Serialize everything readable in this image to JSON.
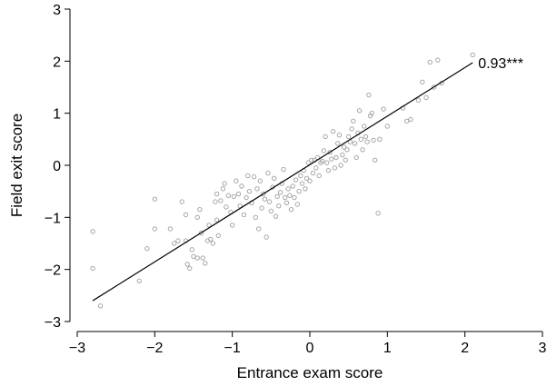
{
  "chart_data": {
    "type": "scatter",
    "title": "",
    "xlabel": "Entrance exam score",
    "ylabel": "Field exit score",
    "xlim": [
      -3,
      3
    ],
    "ylim": [
      -3,
      3
    ],
    "xticks": [
      -3,
      -2,
      -1,
      0,
      1,
      2,
      3
    ],
    "yticks": [
      -3,
      -2,
      -1,
      0,
      1,
      2,
      3
    ],
    "xtick_labels": [
      "−3",
      "−2",
      "−1",
      "0",
      "1",
      "2",
      "3"
    ],
    "ytick_labels": [
      "−3",
      "−2",
      "−1",
      "0",
      "1",
      "2",
      "3"
    ],
    "grid": false,
    "annotation": "0.93***",
    "fit_line": {
      "x": [
        -2.8,
        2.1
      ],
      "y": [
        -2.6,
        1.97
      ]
    },
    "points": [
      [
        -2.8,
        -1.27
      ],
      [
        -2.8,
        -1.98
      ],
      [
        -2.7,
        -2.7
      ],
      [
        -2.2,
        -2.22
      ],
      [
        -2.1,
        -1.6
      ],
      [
        -2.0,
        -1.22
      ],
      [
        -2.0,
        -0.65
      ],
      [
        -1.8,
        -1.22
      ],
      [
        -1.75,
        -1.5
      ],
      [
        -1.7,
        -1.45
      ],
      [
        -1.65,
        -0.7
      ],
      [
        -1.6,
        -0.95
      ],
      [
        -1.6,
        -1.45
      ],
      [
        -1.58,
        -1.9
      ],
      [
        -1.55,
        -1.98
      ],
      [
        -1.52,
        -1.62
      ],
      [
        -1.5,
        -1.75
      ],
      [
        -1.45,
        -1.78
      ],
      [
        -1.45,
        -1.0
      ],
      [
        -1.42,
        -0.85
      ],
      [
        -1.4,
        -1.3
      ],
      [
        -1.38,
        -1.78
      ],
      [
        -1.35,
        -1.88
      ],
      [
        -1.32,
        -1.45
      ],
      [
        -1.3,
        -1.15
      ],
      [
        -1.28,
        -1.42
      ],
      [
        -1.25,
        -1.5
      ],
      [
        -1.22,
        -0.7
      ],
      [
        -1.2,
        -1.05
      ],
      [
        -1.2,
        -0.55
      ],
      [
        -1.18,
        -1.35
      ],
      [
        -1.15,
        -0.68
      ],
      [
        -1.12,
        -0.45
      ],
      [
        -1.1,
        -0.35
      ],
      [
        -1.08,
        -0.8
      ],
      [
        -1.05,
        -0.58
      ],
      [
        -1.02,
        -0.9
      ],
      [
        -1.0,
        -1.15
      ],
      [
        -0.98,
        -0.6
      ],
      [
        -0.95,
        -0.3
      ],
      [
        -0.92,
        -0.55
      ],
      [
        -0.9,
        -0.78
      ],
      [
        -0.88,
        -0.4
      ],
      [
        -0.85,
        -0.95
      ],
      [
        -0.82,
        -0.62
      ],
      [
        -0.8,
        -0.2
      ],
      [
        -0.78,
        -0.5
      ],
      [
        -0.75,
        -0.72
      ],
      [
        -0.72,
        -0.22
      ],
      [
        -0.7,
        -1.0
      ],
      [
        -0.68,
        -0.45
      ],
      [
        -0.66,
        -1.22
      ],
      [
        -0.64,
        -0.3
      ],
      [
        -0.62,
        -0.82
      ],
      [
        -0.6,
        -0.55
      ],
      [
        -0.58,
        -0.65
      ],
      [
        -0.56,
        -1.38
      ],
      [
        -0.54,
        -0.15
      ],
      [
        -0.52,
        -0.7
      ],
      [
        -0.5,
        -0.88
      ],
      [
        -0.48,
        -0.42
      ],
      [
        -0.46,
        -0.25
      ],
      [
        -0.44,
        -0.98
      ],
      [
        -0.42,
        -0.6
      ],
      [
        -0.4,
        -0.78
      ],
      [
        -0.38,
        -0.52
      ],
      [
        -0.36,
        -0.35
      ],
      [
        -0.34,
        -0.08
      ],
      [
        -0.32,
        -0.62
      ],
      [
        -0.3,
        -0.72
      ],
      [
        -0.28,
        -0.45
      ],
      [
        -0.26,
        -0.58
      ],
      [
        -0.24,
        -0.85
      ],
      [
        -0.22,
        -0.4
      ],
      [
        -0.2,
        -0.62
      ],
      [
        -0.18,
        -0.28
      ],
      [
        -0.16,
        -0.75
      ],
      [
        -0.14,
        -0.5
      ],
      [
        -0.12,
        -0.2
      ],
      [
        -0.1,
        -0.35
      ],
      [
        -0.08,
        -0.1
      ],
      [
        -0.06,
        -0.45
      ],
      [
        -0.04,
        -0.25
      ],
      [
        -0.02,
        0.05
      ],
      [
        0.0,
        -0.3
      ],
      [
        0.02,
        0.1
      ],
      [
        0.04,
        -0.15
      ],
      [
        0.06,
        0.1
      ],
      [
        0.08,
        -0.05
      ],
      [
        0.1,
        0.15
      ],
      [
        0.12,
        -0.2
      ],
      [
        0.14,
        0.05
      ],
      [
        0.16,
        0.08
      ],
      [
        0.18,
        0.28
      ],
      [
        0.2,
        0.55
      ],
      [
        0.22,
        0.05
      ],
      [
        0.24,
        -0.1
      ],
      [
        0.26,
        0.25
      ],
      [
        0.28,
        0.12
      ],
      [
        0.3,
        0.65
      ],
      [
        0.32,
        -0.05
      ],
      [
        0.34,
        0.15
      ],
      [
        0.36,
        0.42
      ],
      [
        0.38,
        0.58
      ],
      [
        0.4,
        0.0
      ],
      [
        0.42,
        0.2
      ],
      [
        0.44,
        0.35
      ],
      [
        0.46,
        0.1
      ],
      [
        0.48,
        0.3
      ],
      [
        0.5,
        0.55
      ],
      [
        0.52,
        0.45
      ],
      [
        0.54,
        0.7
      ],
      [
        0.56,
        0.85
      ],
      [
        0.58,
        0.42
      ],
      [
        0.6,
        0.15
      ],
      [
        0.62,
        0.62
      ],
      [
        0.64,
        1.05
      ],
      [
        0.66,
        0.5
      ],
      [
        0.68,
        0.3
      ],
      [
        0.7,
        0.75
      ],
      [
        0.72,
        0.55
      ],
      [
        0.74,
        0.45
      ],
      [
        0.76,
        1.35
      ],
      [
        0.78,
        0.95
      ],
      [
        0.8,
        1.0
      ],
      [
        0.82,
        0.48
      ],
      [
        0.84,
        0.1
      ],
      [
        0.88,
        -0.92
      ],
      [
        0.9,
        0.5
      ],
      [
        0.95,
        1.08
      ],
      [
        1.0,
        0.75
      ],
      [
        1.2,
        1.1
      ],
      [
        1.25,
        0.85
      ],
      [
        1.3,
        0.88
      ],
      [
        1.4,
        1.25
      ],
      [
        1.45,
        1.6
      ],
      [
        1.5,
        1.3
      ],
      [
        1.55,
        1.98
      ],
      [
        1.6,
        1.5
      ],
      [
        1.65,
        2.02
      ],
      [
        1.7,
        1.58
      ],
      [
        2.1,
        2.12
      ]
    ]
  }
}
